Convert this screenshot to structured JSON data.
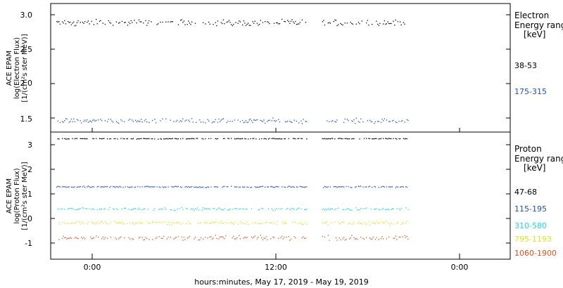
{
  "footer_label": "hours:minutes, May 17, 2019 - May 19, 2019",
  "time_ticks": [
    "0:00",
    "12:00",
    "0:00"
  ],
  "chart_data": [
    {
      "type": "scatter",
      "panel": "electron",
      "ylabel_lines": [
        "ACE EPAM",
        "log(Electron Flux)",
        "[1/(cm²s ster MeV)]"
      ],
      "ylim": [
        1.3,
        3.08
      ],
      "yticks": [
        "1.5",
        "2.0",
        "2.5",
        "3.0"
      ],
      "legend_title": [
        "Electron",
        "Energy range",
        "[keV]"
      ],
      "series": [
        {
          "name": "38-53",
          "color": "#000000",
          "mean": 2.82,
          "spread": 0.06
        },
        {
          "name": "175-315",
          "color": "#1f4fd0",
          "mean": 1.46,
          "spread": 0.05
        }
      ]
    },
    {
      "type": "scatter",
      "panel": "proton",
      "ylabel_lines": [
        "ACE EPAM",
        "log(Proton Flux)",
        "[1/(cm²s ster MeV)]"
      ],
      "ylim": [
        -1.65,
        3.45
      ],
      "yticks": [
        "-1",
        "0",
        "1",
        "2",
        "3"
      ],
      "legend_title": [
        "Proton",
        "Energy range",
        "[keV]"
      ],
      "series": [
        {
          "name": "47-68",
          "color": "#000000",
          "mean": 3.2,
          "spread": 0.02
        },
        {
          "name": "115-195",
          "color": "#1f4fd0",
          "mean": 1.27,
          "spread": 0.04
        },
        {
          "name": "310-580",
          "color": "#1fd6d6",
          "mean": 0.38,
          "spread": 0.07
        },
        {
          "name": "795-1193",
          "color": "#d8e81a",
          "mean": -0.18,
          "spread": 0.1
        },
        {
          "name": "1060-1900",
          "color": "#e8501c",
          "mean": -0.78,
          "spread": 0.13
        }
      ]
    }
  ]
}
